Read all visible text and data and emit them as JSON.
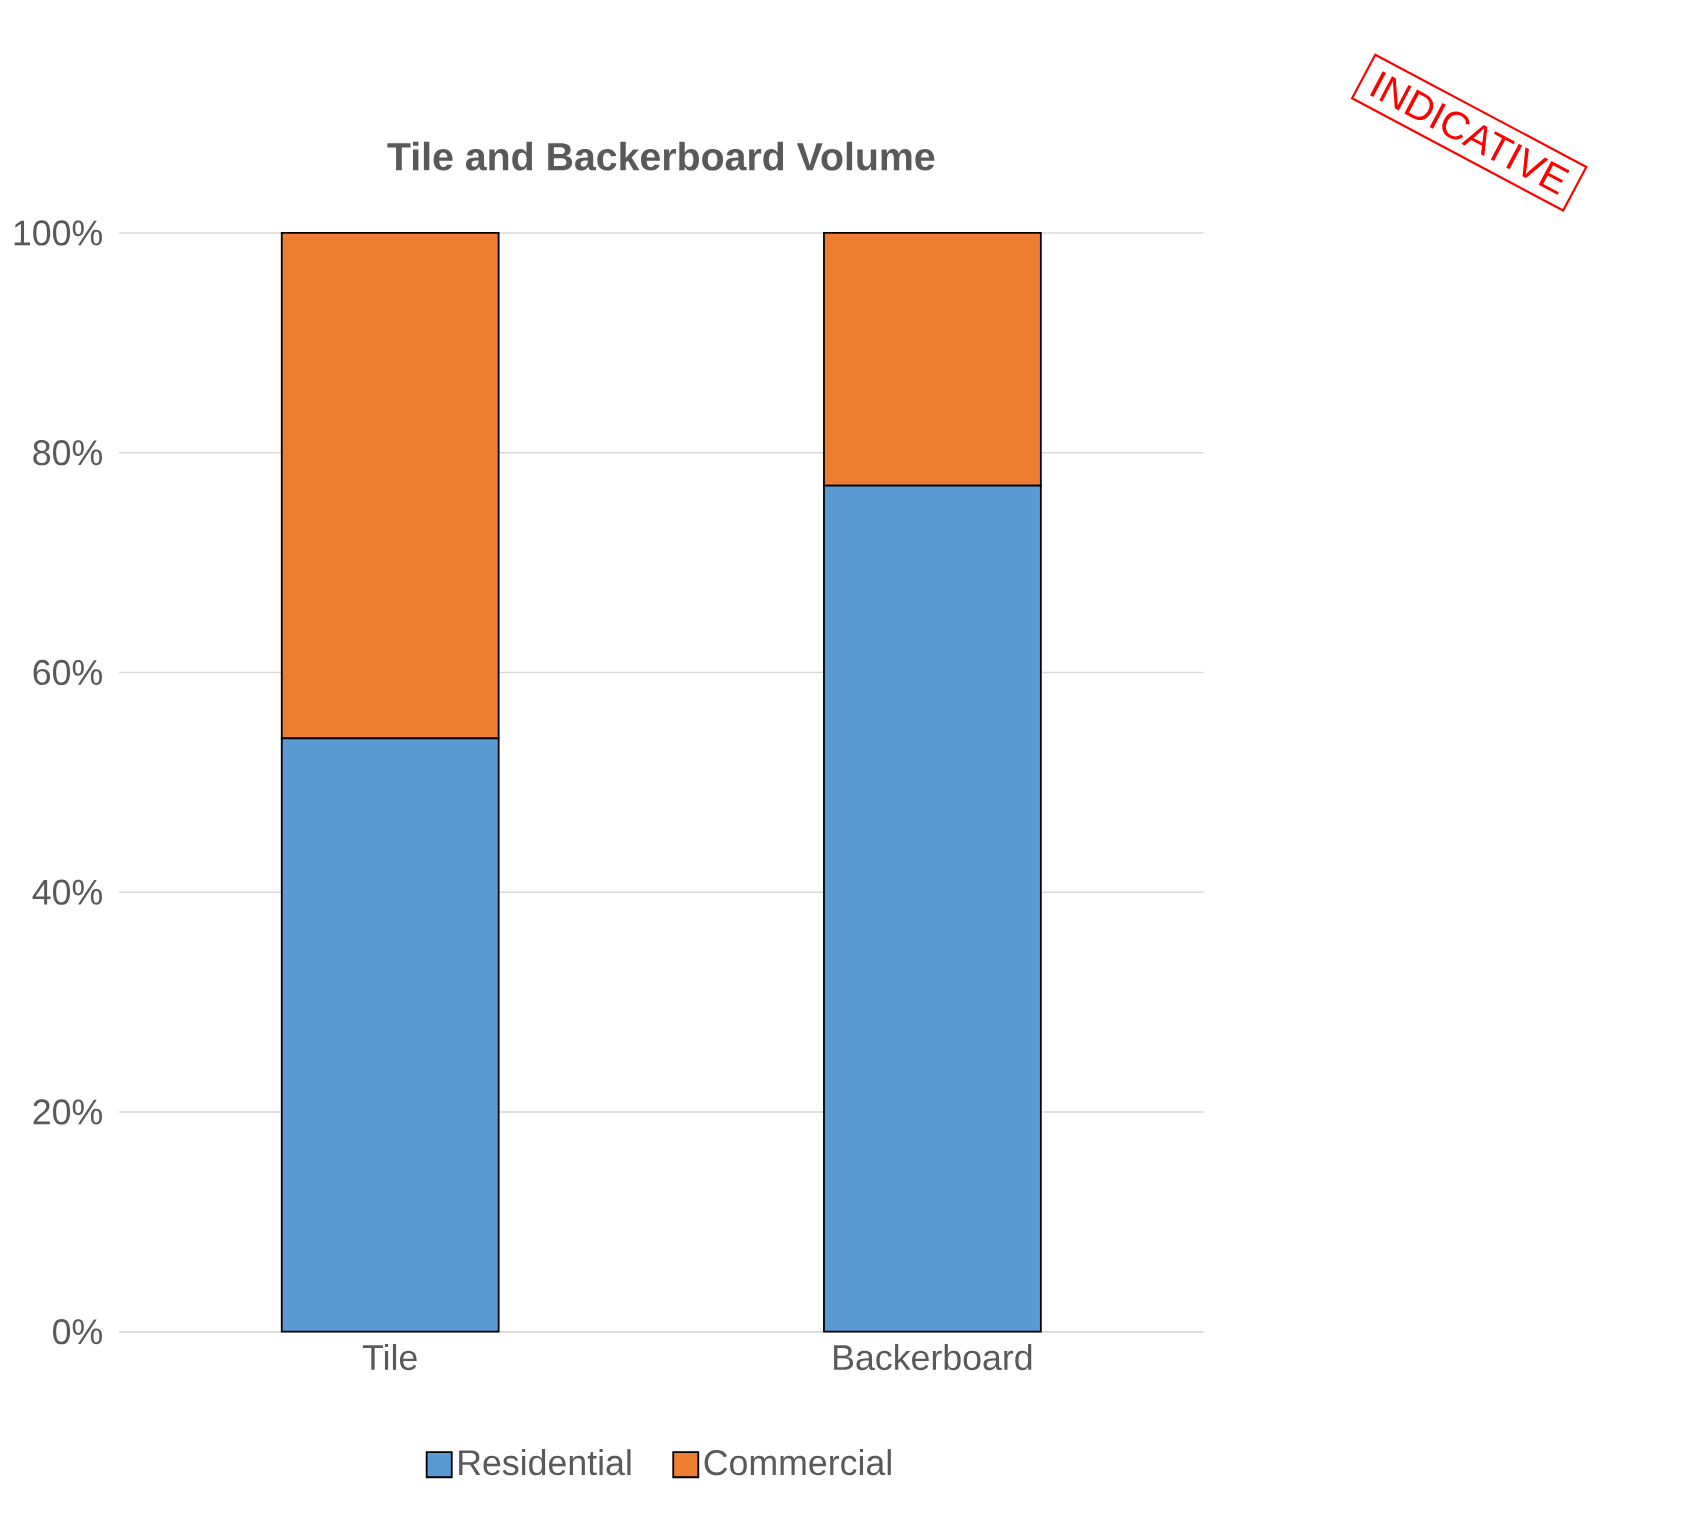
{
  "chart_data": {
    "type": "bar",
    "title": "Tile and Backerboard Volume",
    "stacked": true,
    "categories": [
      "Tile",
      "Backerboard"
    ],
    "series": [
      {
        "name": "Residential",
        "color": "#5b9bd5",
        "values": [
          54,
          77
        ]
      },
      {
        "name": "Commercial",
        "color": "#ed7d31",
        "values": [
          46,
          23
        ]
      }
    ],
    "ylim": [
      0,
      100
    ],
    "yticks": [
      {
        "value": 0,
        "label": "0%"
      },
      {
        "value": 20,
        "label": "20%"
      },
      {
        "value": 40,
        "label": "40%"
      },
      {
        "value": 60,
        "label": "60%"
      },
      {
        "value": 80,
        "label": "80%"
      },
      {
        "value": 100,
        "label": "100%"
      }
    ],
    "grid": "y",
    "legend": "bottom",
    "annotations": [
      "INDICATIVE"
    ]
  }
}
